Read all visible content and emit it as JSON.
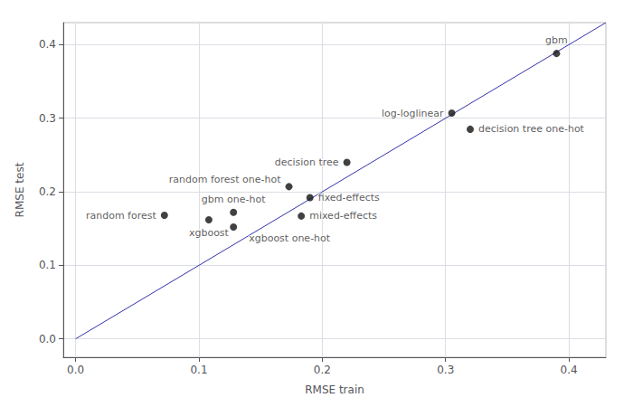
{
  "chart_data": {
    "type": "scatter",
    "xlabel": "RMSE train",
    "ylabel": "RMSE test",
    "xlim": [
      -0.01,
      0.43
    ],
    "ylim": [
      -0.025,
      0.43
    ],
    "xticks": [
      {
        "value": 0.0,
        "label": "0.0"
      },
      0.1,
      0.2,
      0.3,
      0.4
    ],
    "yticks": [
      {
        "value": 0.0,
        "label": "0.0"
      },
      0.1,
      0.2,
      0.3,
      0.4
    ],
    "grid": true,
    "series": [
      {
        "type": "line",
        "color": "#3333aa",
        "x": [
          0.0,
          0.43
        ],
        "values": [
          0.0,
          0.43
        ]
      },
      {
        "type": "scatter",
        "color": "#111111",
        "x": [
          0.39,
          0.305,
          0.32,
          0.22,
          0.173,
          0.19,
          0.128,
          0.183,
          0.072,
          0.108,
          0.128
        ],
        "values": [
          0.388,
          0.307,
          0.285,
          0.24,
          0.207,
          0.192,
          0.172,
          0.167,
          0.168,
          0.162,
          0.152
        ],
        "labels": [
          "gbm",
          "log-loglinear",
          "decision tree one-hot",
          "decision tree",
          "random forest one-hot",
          "fixed-effects",
          "gbm one-hot",
          "mixed-effects",
          "random forest",
          "xgboost",
          "xgboost one-hot"
        ]
      }
    ]
  }
}
